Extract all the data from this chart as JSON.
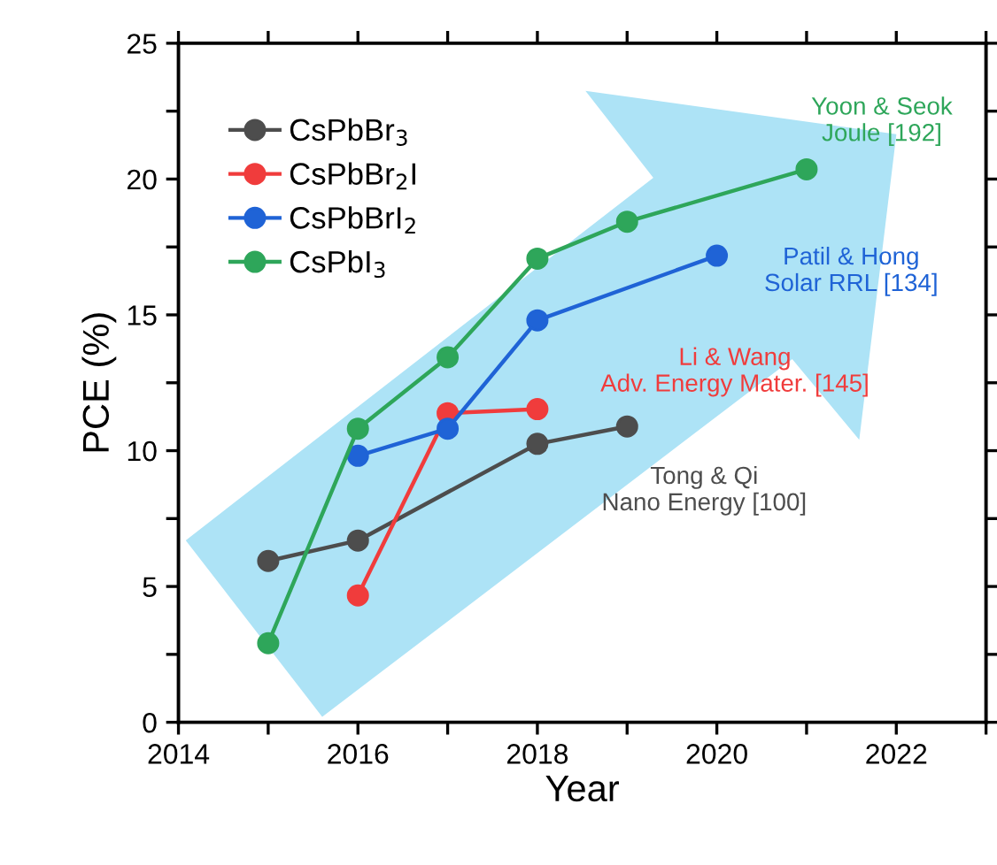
{
  "chart_data": {
    "type": "line",
    "xlabel": "Year",
    "ylabel": "PCE (%)",
    "xlim": [
      2014,
      2023
    ],
    "ylim": [
      0,
      25
    ],
    "xticks": [
      2014,
      {
        "value": 2015,
        "label": null
      },
      2016,
      {
        "value": 2017,
        "label": null
      },
      2018,
      {
        "value": 2019,
        "label": null
      },
      2020,
      {
        "value": 2021,
        "label": null
      },
      2022,
      {
        "value": 2023,
        "label": null
      }
    ],
    "yticks": [
      0,
      {
        "value": 2.5,
        "label": null
      },
      5,
      {
        "value": 7.5,
        "label": null
      },
      10,
      {
        "value": 12.5,
        "label": null
      },
      15,
      {
        "value": 17.5,
        "label": null
      },
      20,
      {
        "value": 22.5,
        "label": null
      },
      25
    ],
    "marker": "circle",
    "line_style": "solid",
    "legend": "top left",
    "grid": false,
    "series": [
      {
        "name": "CsPbBr$_{3}$",
        "color": "#4d4d4d",
        "x": [
          2015,
          2016,
          2018,
          2019
        ],
        "values": [
          5.94,
          6.69,
          10.25,
          10.89
        ]
      },
      {
        "name": "CsPbBr$_{2}$I",
        "color": "#f03c3c",
        "x": [
          2016,
          2017,
          2018
        ],
        "values": [
          4.67,
          11.38,
          11.53
        ]
      },
      {
        "name": "CsPbBrI$_{2}$",
        "color": "#1f63d6",
        "x": [
          2016,
          2017,
          2018,
          2020
        ],
        "values": [
          9.81,
          10.81,
          14.8,
          17.18
        ]
      },
      {
        "name": "CsPbI$_{3}$",
        "color": "#2ea65a",
        "x": [
          2015,
          2016,
          2017,
          2018,
          2019,
          2021
        ],
        "values": [
          2.91,
          10.81,
          13.44,
          17.07,
          18.43,
          20.36
        ]
      }
    ],
    "annotations": [
      "Tong & Qi\nNano Energy [100]",
      "Li & Wang\nAdv. Energy Mater. [145]",
      "Patil & Hong\nSolar RRL [134]",
      "Yoon & Seok\nJoule [192]"
    ]
  }
}
